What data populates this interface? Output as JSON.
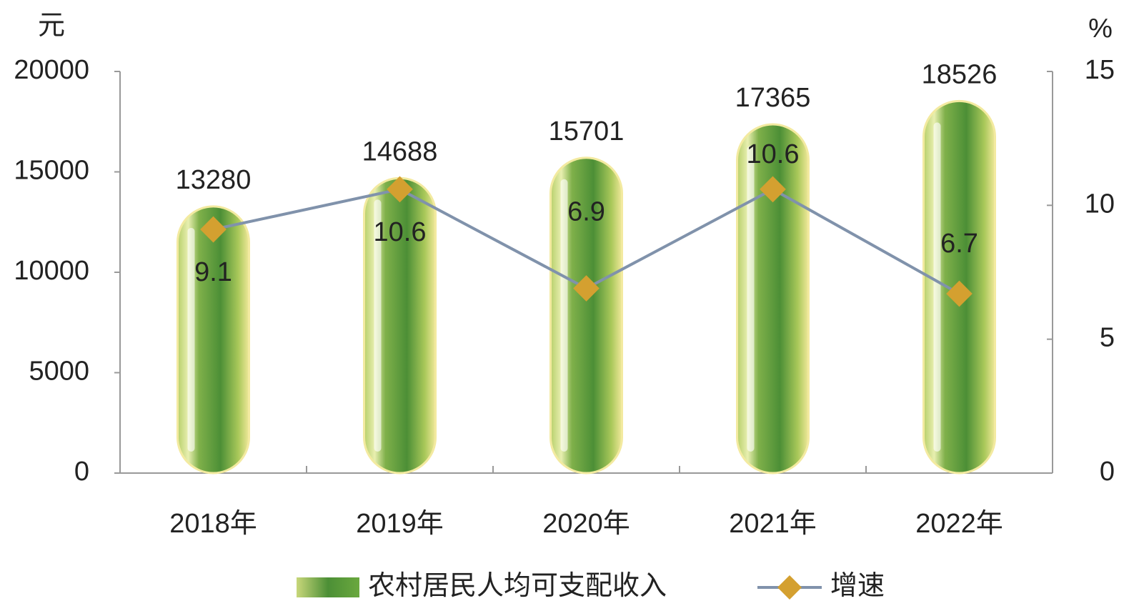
{
  "chart_data": {
    "type": "bar_line",
    "y_unit": "元",
    "y2_unit": "%",
    "categories": [
      "2018年",
      "2019年",
      "2020年",
      "2021年",
      "2022年"
    ],
    "series": [
      {
        "name": "农村居民人均可支配收入",
        "color": "#5a9a3c",
        "values": [
          13280,
          14688,
          15701,
          17365,
          18526
        ]
      },
      {
        "name": "增速",
        "color": "#8092ab",
        "marker_color": "#d4a030",
        "axis": "y2",
        "values": [
          9.1,
          10.6,
          6.9,
          10.6,
          6.7
        ]
      }
    ],
    "ylim": [
      0,
      20000
    ],
    "yticks": [
      0,
      5000,
      10000,
      15000,
      20000
    ],
    "y2lim": [
      0,
      15
    ],
    "y2ticks": [
      0,
      5,
      10,
      15
    ]
  }
}
